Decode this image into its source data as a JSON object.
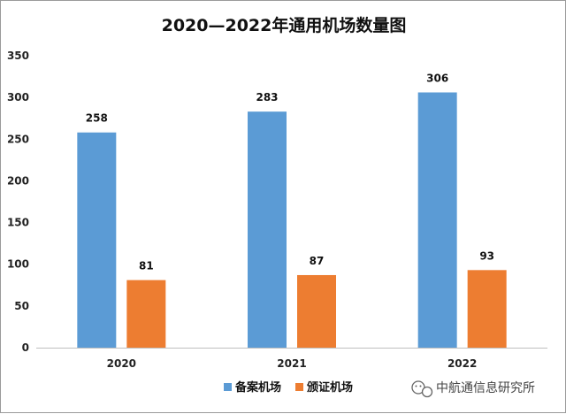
{
  "chart_data": {
    "type": "bar",
    "title": "2020—2022年通用机场数量图",
    "categories": [
      "2020",
      "2021",
      "2022"
    ],
    "series": [
      {
        "name": "备案机场",
        "color": "#5b9bd5",
        "values": [
          258,
          283,
          306
        ]
      },
      {
        "name": "颁证机场",
        "color": "#ed7d31",
        "values": [
          81,
          87,
          93
        ]
      }
    ],
    "ylim": [
      0,
      350
    ],
    "yticks": [
      0,
      50,
      100,
      150,
      200,
      250,
      300,
      350
    ],
    "grid": false,
    "legend_position": "bottom-center",
    "xlabel": "",
    "ylabel": ""
  },
  "watermark": {
    "text": "中航通信息研究所",
    "icon": "wechat-icon"
  }
}
